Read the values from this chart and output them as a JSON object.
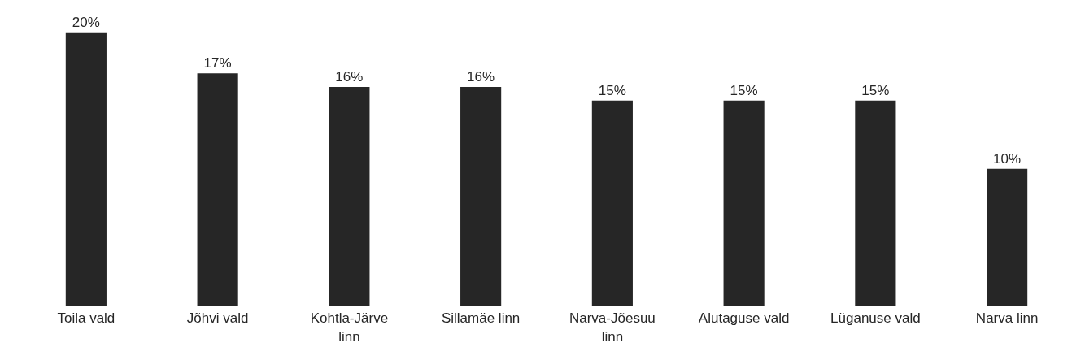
{
  "chart_data": {
    "type": "bar",
    "categories": [
      "Toila vald",
      "Jõhvi vald",
      "Kohtla-Järve linn",
      "Sillamäe linn",
      "Narva-Jõesuu linn",
      "Alutaguse vald",
      "Lüganuse vald",
      "Narva linn"
    ],
    "values": [
      20,
      17,
      16,
      16,
      15,
      15,
      15,
      10
    ],
    "value_labels": [
      "20%",
      "17%",
      "16%",
      "16%",
      "15%",
      "15%",
      "15%",
      "10%"
    ],
    "color": "#262626",
    "legend": false,
    "tick_labels": "x"
  }
}
